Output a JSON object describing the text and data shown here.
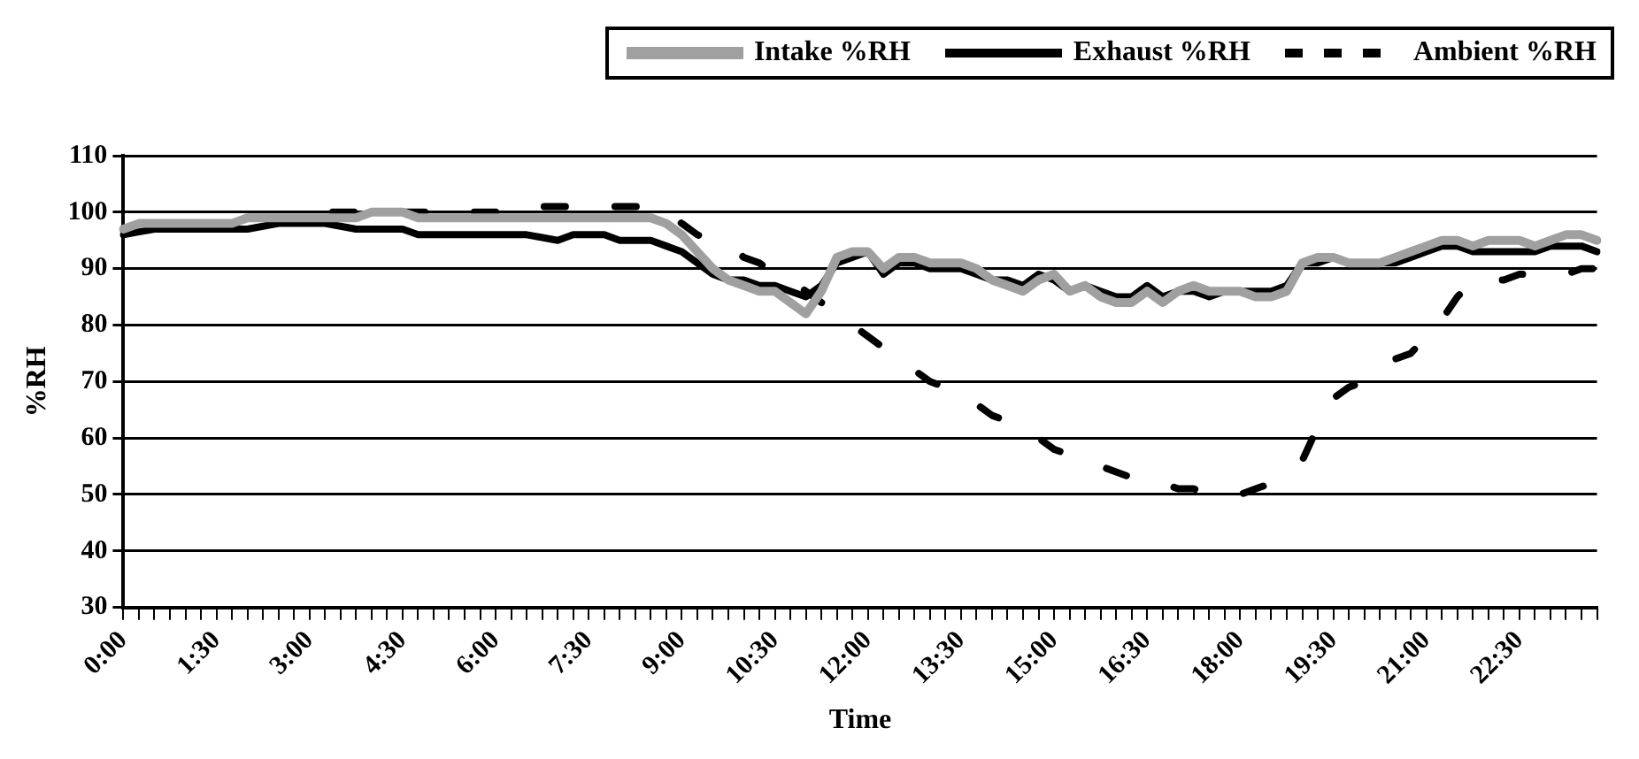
{
  "chart_data": {
    "type": "line",
    "xlabel": "Time",
    "ylabel": "%RH",
    "categories": [
      "0:00",
      null,
      null,
      null,
      null,
      null,
      "1:30",
      null,
      null,
      null,
      null,
      null,
      "3:00",
      null,
      null,
      null,
      null,
      null,
      "4:30",
      null,
      null,
      null,
      null,
      null,
      "6:00",
      null,
      null,
      null,
      null,
      null,
      "7:30",
      null,
      null,
      null,
      null,
      null,
      "9:00",
      null,
      null,
      null,
      null,
      null,
      "10:30",
      null,
      null,
      null,
      null,
      null,
      "12:00",
      null,
      null,
      null,
      null,
      null,
      "13:30",
      null,
      null,
      null,
      null,
      null,
      "15:00",
      null,
      null,
      null,
      null,
      null,
      "16:30",
      null,
      null,
      null,
      null,
      null,
      "18:00",
      null,
      null,
      null,
      null,
      null,
      "19:30",
      null,
      null,
      null,
      null,
      null,
      "21:00",
      null,
      null,
      null,
      null,
      null,
      "22:30",
      null,
      null,
      null,
      null,
      null
    ],
    "series": [
      {
        "name": "Intake %RH",
        "color": "#a0a0a0",
        "line_style": "solid",
        "values": [
          97,
          98,
          98,
          98,
          98,
          98,
          98,
          98,
          99,
          99,
          99,
          99,
          99,
          99,
          99,
          99,
          100,
          100,
          100,
          99,
          99,
          99,
          99,
          99,
          99,
          99,
          99,
          99,
          99,
          99,
          99,
          99,
          99,
          99,
          99,
          98,
          96,
          93,
          90,
          88,
          87,
          86,
          86,
          84,
          82,
          86,
          92,
          93,
          93,
          90,
          92,
          92,
          91,
          91,
          91,
          90,
          88,
          87,
          86,
          88,
          89,
          86,
          87,
          85,
          84,
          84,
          86,
          84,
          86,
          87,
          86,
          86,
          86,
          85,
          85,
          86,
          91,
          92,
          92,
          91,
          91,
          91,
          92,
          93,
          94,
          95,
          95,
          94,
          95,
          95,
          95,
          94,
          95,
          96,
          96,
          95
        ]
      },
      {
        "name": "Exhaust %RH",
        "color": "#000000",
        "line_style": "solid",
        "values": [
          96,
          96.5,
          97,
          97,
          97,
          97,
          97,
          97,
          97,
          97.5,
          98,
          98,
          98,
          98,
          97.5,
          97,
          97,
          97,
          97,
          96,
          96,
          96,
          96,
          96,
          96,
          96,
          96,
          95.5,
          95,
          96,
          96,
          96,
          95,
          95,
          95,
          94,
          93,
          91,
          89,
          88,
          88,
          87,
          87,
          86,
          85,
          87,
          91,
          92,
          93,
          89,
          91,
          91,
          90,
          90,
          90,
          89,
          88,
          88,
          87,
          89,
          88,
          86,
          87,
          86,
          85,
          85,
          87,
          85,
          86,
          86,
          85,
          86,
          86,
          86,
          86,
          87,
          91,
          91,
          92,
          91,
          91,
          91,
          91,
          92,
          93,
          94,
          94,
          93,
          93,
          93,
          93,
          93,
          94,
          94,
          94,
          93
        ]
      },
      {
        "name": "Ambient %RH",
        "color": "#000000",
        "line_style": "dashed",
        "values": [
          97,
          98,
          98,
          98,
          98,
          98,
          98,
          98,
          99,
          99,
          99,
          99,
          100,
          100,
          100,
          100,
          100,
          100,
          100,
          100,
          100,
          100,
          100,
          100,
          100,
          100,
          101,
          101,
          101,
          101,
          101,
          101,
          101,
          101,
          101,
          100,
          98,
          96,
          95,
          94,
          92,
          91,
          89,
          88,
          86,
          84,
          82,
          80,
          78,
          76,
          74,
          72,
          70,
          69,
          67,
          66,
          64,
          63,
          61,
          60,
          58,
          57,
          56,
          55,
          54,
          53,
          52,
          52,
          51,
          51,
          50,
          50,
          50,
          51,
          52,
          54,
          56,
          62,
          67,
          69,
          70,
          72,
          74,
          75,
          78,
          81,
          85,
          88,
          88,
          88,
          89,
          89,
          89,
          89,
          90,
          90
        ]
      }
    ],
    "ylim": [
      30,
      110
    ],
    "yticks": [
      30,
      40,
      50,
      60,
      70,
      80,
      90,
      100,
      110
    ],
    "grid": "y",
    "legend": "top",
    "marker": "none"
  }
}
